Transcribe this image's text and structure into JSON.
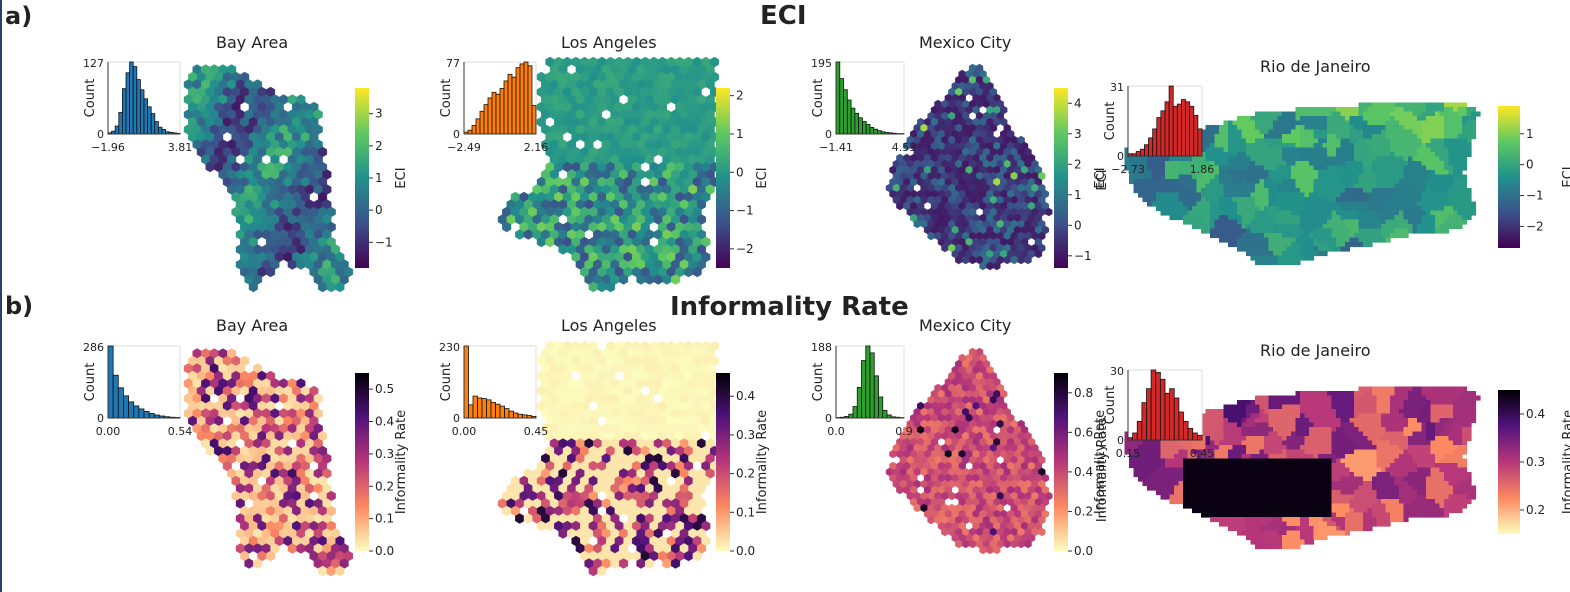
{
  "panels": [
    {
      "label": "a)",
      "title": "ECI",
      "colorbar_label": "ECI",
      "cities": [
        {
          "name": "Bay Area",
          "palette": "viridis",
          "hist_color": "#1f77b4",
          "hist": {
            "ymax_label": "127",
            "ymin_label": "0",
            "xmin_label": "−1.96",
            "xmax_label": "3.81",
            "ylabel": "Count",
            "values": [
              2,
              5,
              14,
              38,
              80,
              108,
              127,
              119,
              96,
              78,
              62,
              48,
              36,
              22,
              12,
              8,
              4,
              3,
              2,
              1
            ]
          },
          "cbar": {
            "ticks": [
              "3",
              "2",
              "1",
              "0",
              "−1"
            ],
            "vmin": -1.8,
            "vmax": 3.8,
            "tick_values": [
              3,
              2,
              1,
              0,
              -1
            ]
          }
        },
        {
          "name": "Los Angeles",
          "palette": "viridis",
          "hist_color": "#ff7f0e",
          "hist": {
            "ymax_label": "77",
            "ymin_label": "0",
            "xmin_label": "−2.49",
            "xmax_label": "2.16",
            "ylabel": "Count",
            "values": [
              2,
              4,
              9,
              16,
              24,
              31,
              38,
              44,
              42,
              48,
              56,
              63,
              60,
              70,
              74,
              76,
              72,
              30
            ]
          },
          "cbar": {
            "ticks": [
              "2",
              "1",
              "0",
              "−1",
              "−2"
            ],
            "vmin": -2.5,
            "vmax": 2.2,
            "tick_values": [
              2,
              1,
              0,
              -1,
              -2
            ]
          }
        },
        {
          "name": "Mexico City",
          "palette": "viridis",
          "hist_color": "#2ca02c",
          "hist": {
            "ymax_label": "195",
            "ymin_label": "0",
            "xmin_label": "−1.41",
            "xmax_label": "4.53",
            "ylabel": "Count",
            "values": [
              195,
              150,
              120,
              92,
              70,
              56,
              44,
              34,
              26,
              18,
              13,
              9,
              6,
              4,
              3,
              2,
              1,
              1
            ]
          },
          "cbar": {
            "ticks": [
              "4",
              "3",
              "2",
              "1",
              "0",
              "−1"
            ],
            "vmin": -1.4,
            "vmax": 4.5,
            "tick_values": [
              4,
              3,
              2,
              1,
              0,
              -1
            ]
          }
        },
        {
          "name": "Rio de Janeiro",
          "palette": "viridis",
          "hist_color": "#d62728",
          "hist": {
            "ymax_label": "31",
            "ymin_label": "0",
            "xmin_label": "−2.73",
            "xmax_label": "1.86",
            "ylabel": "Count",
            "values": [
              1,
              1,
              2,
              3,
              5,
              8,
              12,
              17,
              20,
              24,
              31,
              22,
              23,
              25,
              24,
              22,
              18,
              12
            ]
          },
          "cbar": {
            "ticks": [
              "1",
              "0",
              "−1",
              "−2"
            ],
            "vmin": -2.7,
            "vmax": 1.9,
            "tick_values": [
              1,
              0,
              -1,
              -2
            ]
          }
        }
      ]
    },
    {
      "label": "b)",
      "title": "Informality Rate",
      "colorbar_label": "Informality Rate",
      "cities": [
        {
          "name": "Bay Area",
          "palette": "magma",
          "hist_color": "#1f77b4",
          "hist": {
            "ymax_label": "286",
            "ymin_label": "0",
            "xmin_label": "0.00",
            "xmax_label": "0.54",
            "ylabel": "Count",
            "values": [
              286,
              170,
              120,
              88,
              64,
              48,
              36,
              26,
              18,
              12,
              8,
              5,
              3,
              2
            ]
          },
          "cbar": {
            "ticks": [
              "0.5",
              "0.4",
              "0.3",
              "0.2",
              "0.1",
              "0.0"
            ],
            "vmin": 0.0,
            "vmax": 0.55,
            "tick_values": [
              0.5,
              0.4,
              0.3,
              0.2,
              0.1,
              0.0
            ]
          }
        },
        {
          "name": "Los Angeles",
          "palette": "magma",
          "hist_color": "#ff7f0e",
          "hist": {
            "ymax_label": "230",
            "ymin_label": "0",
            "xmin_label": "0.00",
            "xmax_label": "0.45",
            "ylabel": "Count",
            "values": [
              230,
              42,
              70,
              64,
              62,
              58,
              50,
              44,
              38,
              30,
              22,
              16,
              12,
              10,
              8,
              5
            ]
          },
          "cbar": {
            "ticks": [
              "0.4",
              "0.3",
              "0.2",
              "0.1",
              "0.0"
            ],
            "vmin": 0.0,
            "vmax": 0.46,
            "tick_values": [
              0.4,
              0.3,
              0.2,
              0.1,
              0.0
            ]
          }
        },
        {
          "name": "Mexico City",
          "palette": "magma",
          "hist_color": "#2ca02c",
          "hist": {
            "ymax_label": "188",
            "ymin_label": "0",
            "xmin_label": "0.0",
            "xmax_label": "0.9",
            "ylabel": "Count",
            "values": [
              1,
              2,
              4,
              10,
              30,
              80,
              150,
              188,
              170,
              110,
              55,
              20,
              8,
              3,
              2,
              1
            ]
          },
          "cbar": {
            "ticks": [
              "0.8",
              "0.6",
              "0.4",
              "0.2",
              "0.0"
            ],
            "vmin": 0.0,
            "vmax": 0.9,
            "tick_values": [
              0.8,
              0.6,
              0.4,
              0.2,
              0.0
            ]
          }
        },
        {
          "name": "Rio de Janeiro",
          "palette": "magma",
          "hist_color": "#d62728",
          "hist": {
            "ymax_label": "30",
            "ymin_label": "0",
            "xmin_label": "0.15",
            "xmax_label": "0.45",
            "ylabel": "Count",
            "values": [
              1,
              3,
              8,
              16,
              22,
              30,
              29,
              26,
              20,
              22,
              18,
              12,
              8,
              5,
              3,
              2
            ]
          },
          "cbar": {
            "ticks": [
              "0.4",
              "0.3",
              "0.2"
            ],
            "vmin": 0.15,
            "vmax": 0.45,
            "tick_values": [
              0.4,
              0.3,
              0.2
            ]
          }
        }
      ]
    }
  ],
  "chart_data": {
    "type": "heatmap",
    "panels": [
      {
        "title": "ECI",
        "cities": [
          "Bay Area",
          "Los Angeles",
          "Mexico City",
          "Rio de Janeiro"
        ],
        "hist_y_max": [
          127,
          77,
          195,
          31
        ],
        "hist_x_range": [
          [
            -1.96,
            3.81
          ],
          [
            -2.49,
            2.16
          ],
          [
            -1.41,
            4.53
          ],
          [
            -2.73,
            1.86
          ]
        ]
      },
      {
        "title": "Informality Rate",
        "cities": [
          "Bay Area",
          "Los Angeles",
          "Mexico City",
          "Rio de Janeiro"
        ],
        "hist_y_max": [
          286,
          230,
          188,
          30
        ],
        "hist_x_range": [
          [
            0.0,
            0.54
          ],
          [
            0.0,
            0.45
          ],
          [
            0.0,
            0.9
          ],
          [
            0.15,
            0.45
          ]
        ]
      }
    ]
  }
}
